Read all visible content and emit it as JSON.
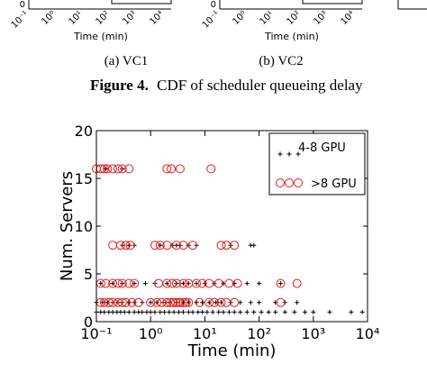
{
  "top_panels": [
    {
      "ytick": "0",
      "xticks": [
        "10⁻¹",
        "10⁰",
        "10¹",
        "10²",
        "10³",
        "10⁴"
      ],
      "xlabel": "Time (min)",
      "caption": "(a) VC1"
    },
    {
      "ytick": "0",
      "xticks": [
        "10⁻¹",
        "10⁰",
        "10¹",
        "10²",
        "10³",
        "10⁴"
      ],
      "xlabel": "Time (min)",
      "caption": "(b) VC2"
    }
  ],
  "figure_caption": {
    "label": "Figure 4.",
    "text": "CDF of scheduler queueing delay"
  },
  "chart_data": {
    "type": "scatter",
    "xlabel": "Time (min)",
    "ylabel": "Num. Servers",
    "xscale": "log",
    "xlim": [
      0.1,
      10000
    ],
    "xticks": [
      {
        "value": 0.1,
        "label": "10⁻¹"
      },
      {
        "value": 1,
        "label": "10⁰"
      },
      {
        "value": 10,
        "label": "10¹"
      },
      {
        "value": 100,
        "label": "10²"
      },
      {
        "value": 1000,
        "label": "10³"
      },
      {
        "value": 10000,
        "label": "10⁴"
      }
    ],
    "ylim": [
      0,
      20
    ],
    "yticks": [
      0,
      5,
      10,
      15,
      20
    ],
    "legend": "upper right",
    "series": [
      {
        "name": "4-8 GPU",
        "color": "#000000",
        "marker": "plus",
        "x": [
          0.1,
          0.12,
          0.14,
          0.17,
          0.2,
          0.24,
          0.28,
          0.33,
          0.4,
          0.5,
          0.6,
          0.7,
          0.85,
          1,
          1.2,
          1.5,
          1.8,
          2.2,
          2.7,
          3.3,
          4,
          5,
          6,
          7.5,
          9,
          11,
          14,
          18,
          22,
          28,
          35,
          45,
          60,
          80,
          110,
          150,
          200,
          300,
          450,
          700,
          1000,
          2000,
          5000,
          8000,
          0.1,
          0.13,
          0.16,
          0.2,
          0.25,
          0.3,
          0.4,
          0.5,
          0.7,
          1,
          1.3,
          1.7,
          2.2,
          3,
          4,
          5,
          7,
          9,
          12,
          16,
          20,
          30,
          45,
          70,
          100,
          200,
          300,
          500,
          0.12,
          0.2,
          0.3,
          0.5,
          0.8,
          1.2,
          2,
          3,
          4,
          5,
          7,
          10,
          15,
          22,
          35,
          60,
          100,
          250,
          0.3,
          0.4,
          0.5,
          1.5,
          2.5,
          3,
          3.5,
          5,
          7,
          30,
          70,
          80,
          0.15,
          0.3
        ],
        "y": [
          1,
          1,
          1,
          1,
          1,
          1,
          1,
          1,
          1,
          1,
          1,
          1,
          1,
          1,
          1,
          1,
          1,
          1,
          1,
          1,
          1,
          1,
          1,
          1,
          1,
          1,
          1,
          1,
          1,
          1,
          1,
          1,
          1,
          1,
          1,
          1,
          1,
          1,
          1,
          1,
          1,
          1,
          1,
          1,
          2,
          2,
          2,
          2,
          2,
          2,
          2,
          2,
          2,
          2,
          2,
          2,
          2,
          2,
          2,
          2,
          2,
          2,
          2,
          2,
          2,
          2,
          2,
          2,
          2,
          2,
          2,
          2,
          4,
          4,
          4,
          4,
          4,
          4,
          4,
          4,
          4,
          4,
          4,
          4,
          4,
          4,
          4,
          4,
          4,
          4,
          8,
          8,
          8,
          8,
          8,
          8,
          8,
          8,
          8,
          8,
          8,
          8,
          16,
          16
        ]
      },
      {
        "name": ">8 GPU",
        "color": "#e41a1c",
        "marker": "circle",
        "x": [
          0.1,
          0.12,
          0.14,
          0.16,
          0.2,
          0.25,
          0.3,
          0.4,
          2,
          2.4,
          3.5,
          13,
          0.2,
          0.28,
          0.35,
          0.42,
          1.2,
          1.5,
          2,
          3,
          4,
          6,
          20,
          25,
          35,
          0.12,
          0.15,
          0.2,
          0.25,
          0.3,
          0.4,
          0.5,
          1.4,
          2,
          2.5,
          3,
          4,
          5,
          7,
          9,
          12,
          18,
          28,
          40,
          250,
          500,
          0.12,
          0.14,
          0.17,
          0.2,
          0.25,
          0.3,
          0.35,
          0.45,
          0.6,
          1,
          1.3,
          1.6,
          2,
          2.3,
          2.6,
          2.9,
          3.2,
          3.5,
          4,
          4.5,
          5,
          8,
          12,
          15,
          20,
          25,
          35,
          250
        ],
        "y": [
          16,
          16,
          16,
          16,
          16,
          16,
          16,
          16,
          16,
          16,
          16,
          16,
          8,
          8,
          8,
          8,
          8,
          8,
          8,
          8,
          8,
          8,
          8,
          8,
          8,
          4,
          4,
          4,
          4,
          4,
          4,
          4,
          4,
          4,
          4,
          4,
          4,
          4,
          4,
          4,
          4,
          4,
          4,
          4,
          4,
          4,
          2,
          2,
          2,
          2,
          2,
          2,
          2,
          2,
          2,
          2,
          2,
          2,
          2,
          2,
          2,
          2,
          2,
          2,
          2,
          2,
          2,
          2,
          2,
          2,
          2,
          2,
          2,
          2
        ]
      }
    ]
  }
}
